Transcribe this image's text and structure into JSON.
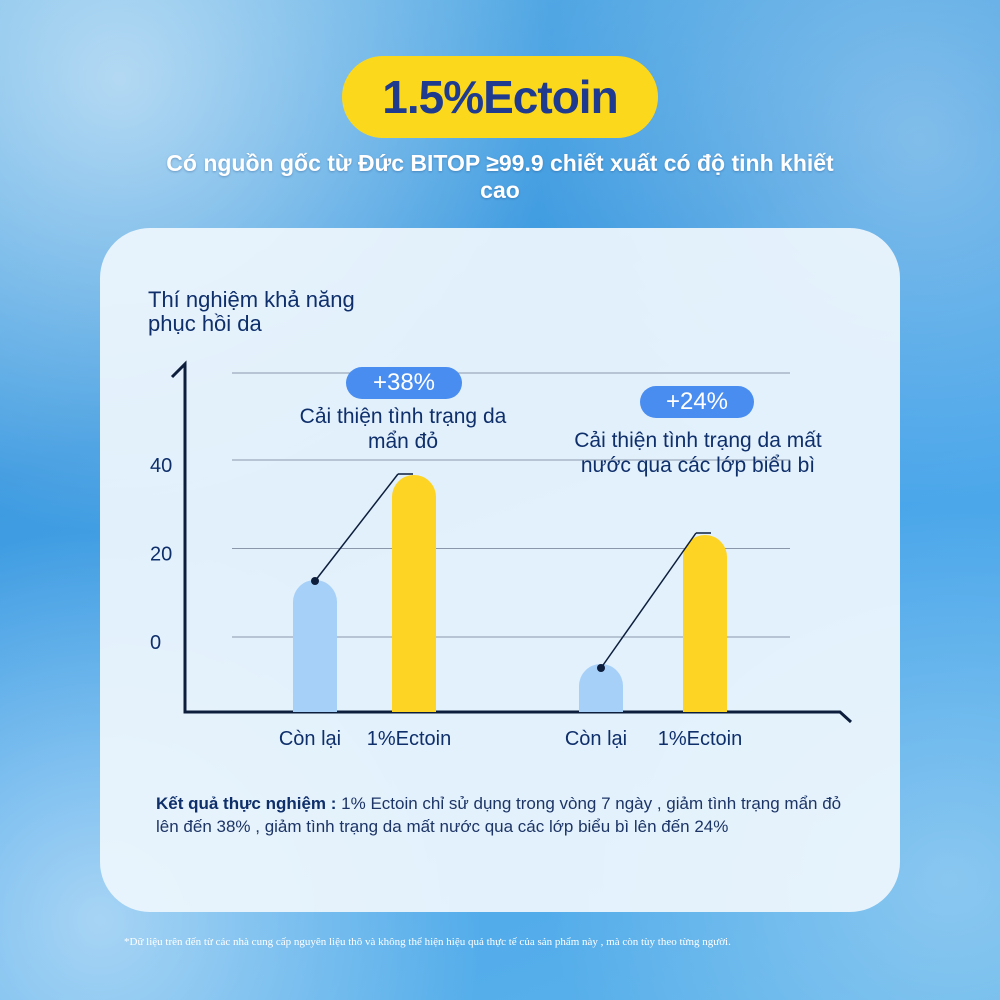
{
  "title": "1.5%Ectoin",
  "subtitle": "Có nguồn gốc từ Đức BITOP ≥99.9 chiết xuất có độ tinh khiết cao",
  "card_heading": "Thí nghiệm khả năng phục hồi da",
  "result": {
    "label": "Kết quả thực nghiệm :",
    "text": " 1% Ectoin chỉ sử dụng trong vòng 7 ngày , giảm tình trạng mẩn đỏ lên đến 38% , giảm tình trạng da mất nước qua các lớp biểu bì lên đến 24%"
  },
  "footnote": "*Dữ liệu trên đến từ các nhà cung cấp nguyên liệu thô và không thể hiện hiệu quả thực tế của sản phẩm này , mà còn tùy theo từng người.",
  "colors": {
    "control": "#a6d0f8",
    "ectoin": "#fdd324",
    "pill": "#4a8df0",
    "title_pill": "#fcd81c"
  },
  "chart_data": {
    "type": "bar",
    "yticks": [
      "40",
      "20",
      "0"
    ],
    "ylim": [
      0,
      40
    ],
    "groups": [
      {
        "categories": [
          "Còn lại",
          "1%Ectoin"
        ],
        "values": [
          13,
          38
        ],
        "change": "+38%",
        "annotation": "Cải thiện tình trạng da mẩn đỏ"
      },
      {
        "categories": [
          "Còn lại",
          "1%Ectoin"
        ],
        "values": [
          -6,
          24
        ],
        "change": "+24%",
        "annotation": "Cải thiện tình trạng da mất nước qua các lớp biểu bì"
      }
    ]
  }
}
